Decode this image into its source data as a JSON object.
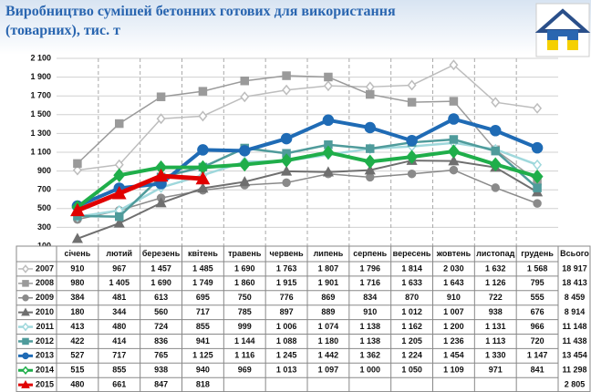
{
  "chart_data": {
    "type": "line",
    "title": "Виробництво сумішей бетонних готових для використання (товарних), тис. т",
    "categories": [
      "січень",
      "лютий",
      "березень",
      "квітень",
      "травень",
      "червень",
      "липень",
      "серпень",
      "вересень",
      "жовтень",
      "листопад",
      "грудень"
    ],
    "total_header": "Всього",
    "ylim": [
      100,
      2100
    ],
    "yticks": [
      100,
      300,
      500,
      700,
      900,
      {
        "value": 1100,
        "label": "1 100"
      },
      {
        "value": 1300,
        "label": "1 300"
      },
      {
        "value": 1500,
        "label": "1 500"
      },
      {
        "value": 1700,
        "label": "1 700"
      },
      {
        "value": 1900,
        "label": "1 900"
      },
      {
        "value": 2100,
        "label": "2 100"
      }
    ],
    "grid": true,
    "series": [
      {
        "name": "2007",
        "color": "#bdbdbd",
        "marker": "diamond",
        "width": 1.5,
        "values": [
          910,
          967,
          1457,
          1485,
          1690,
          1763,
          1807,
          1796,
          1814,
          2030,
          1632,
          1568
        ],
        "value_labels": [
          "910",
          "967",
          "1 457",
          "1 485",
          "1 690",
          "1 763",
          "1 807",
          "1 796",
          "1 814",
          "2 030",
          "1 632",
          "1 568"
        ],
        "total": 18917,
        "total_label": "18 917"
      },
      {
        "name": "2008",
        "color": "#9a9a9a",
        "marker": "square",
        "width": 1.5,
        "values": [
          980,
          1405,
          1690,
          1749,
          1860,
          1915,
          1901,
          1716,
          1633,
          1643,
          1126,
          795
        ],
        "value_labels": [
          "980",
          "1 405",
          "1 690",
          "1 749",
          "1 860",
          "1 915",
          "1 901",
          "1 716",
          "1 633",
          "1 643",
          "1 126",
          "795"
        ],
        "total": 18413,
        "total_label": "18 413"
      },
      {
        "name": "2009",
        "color": "#8a8a8a",
        "marker": "circle",
        "width": 1.5,
        "values": [
          384,
          481,
          613,
          695,
          750,
          776,
          869,
          834,
          870,
          910,
          722,
          555
        ],
        "value_labels": [
          "384",
          "481",
          "613",
          "695",
          "750",
          "776",
          "869",
          "834",
          "870",
          "910",
          "722",
          "555"
        ],
        "total": 8459,
        "total_label": "8 459"
      },
      {
        "name": "2010",
        "color": "#6f6f6f",
        "marker": "triangle",
        "width": 2,
        "values": [
          180,
          344,
          560,
          717,
          785,
          897,
          889,
          910,
          1012,
          1007,
          938,
          676
        ],
        "value_labels": [
          "180",
          "344",
          "560",
          "717",
          "785",
          "897",
          "889",
          "910",
          "1 012",
          "1 007",
          "938",
          "676"
        ],
        "total": 8914,
        "total_label": "8 914"
      },
      {
        "name": "2011",
        "color": "#9fd8dc",
        "marker": "diamond",
        "width": 2.5,
        "values": [
          413,
          480,
          724,
          855,
          999,
          1006,
          1074,
          1138,
          1162,
          1200,
          1131,
          966
        ],
        "value_labels": [
          "413",
          "480",
          "724",
          "855",
          "999",
          "1 006",
          "1 074",
          "1 138",
          "1 162",
          "1 200",
          "1 131",
          "966"
        ],
        "total": 11148,
        "total_label": "11 148"
      },
      {
        "name": "2012",
        "color": "#4f9b9b",
        "marker": "square",
        "width": 2.5,
        "values": [
          422,
          414,
          836,
          941,
          1144,
          1088,
          1180,
          1138,
          1205,
          1236,
          1113,
          720
        ],
        "value_labels": [
          "422",
          "414",
          "836",
          "941",
          "1 144",
          "1 088",
          "1 180",
          "1 138",
          "1 205",
          "1 236",
          "1 113",
          "720"
        ],
        "total": 11438,
        "total_label": "11 438"
      },
      {
        "name": "2013",
        "color": "#1f6bb5",
        "marker": "circle",
        "width": 4,
        "values": [
          527,
          717,
          765,
          1125,
          1116,
          1245,
          1442,
          1362,
          1224,
          1454,
          1330,
          1147
        ],
        "value_labels": [
          "527",
          "717",
          "765",
          "1 125",
          "1 116",
          "1 245",
          "1 442",
          "1 362",
          "1 224",
          "1 454",
          "1 330",
          "1 147"
        ],
        "total": 13454,
        "total_label": "13 454"
      },
      {
        "name": "2014",
        "color": "#1fae4a",
        "marker": "diamond",
        "width": 4,
        "values": [
          515,
          855,
          938,
          940,
          969,
          1013,
          1097,
          1000,
          1050,
          1109,
          971,
          841
        ],
        "value_labels": [
          "515",
          "855",
          "938",
          "940",
          "969",
          "1 013",
          "1 097",
          "1 000",
          "1 050",
          "1 109",
          "971",
          "841"
        ],
        "total": 11298,
        "total_label": "11 298"
      },
      {
        "name": "2015",
        "color": "#e00000",
        "marker": "triangle",
        "width": 5,
        "values": [
          480,
          661,
          847,
          818,
          null,
          null,
          null,
          null,
          null,
          null,
          null,
          null
        ],
        "value_labels": [
          "480",
          "661",
          "847",
          "818",
          null,
          null,
          null,
          null,
          null,
          null,
          null,
          null
        ],
        "total": 2805,
        "total_label": "2 805"
      }
    ]
  }
}
